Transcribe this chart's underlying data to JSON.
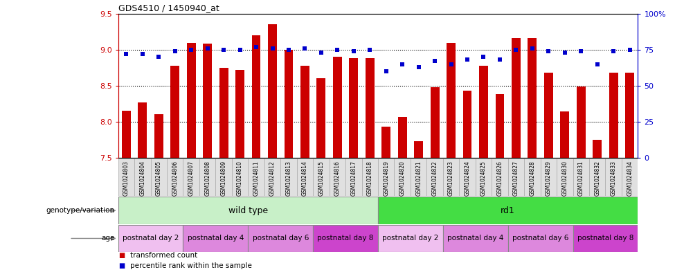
{
  "title": "GDS4510 / 1450940_at",
  "samples": [
    "GSM1024803",
    "GSM1024804",
    "GSM1024805",
    "GSM1024806",
    "GSM1024807",
    "GSM1024808",
    "GSM1024809",
    "GSM1024810",
    "GSM1024811",
    "GSM1024812",
    "GSM1024813",
    "GSM1024814",
    "GSM1024815",
    "GSM1024816",
    "GSM1024817",
    "GSM1024818",
    "GSM1024819",
    "GSM1024820",
    "GSM1024821",
    "GSM1024822",
    "GSM1024823",
    "GSM1024824",
    "GSM1024825",
    "GSM1024826",
    "GSM1024827",
    "GSM1024828",
    "GSM1024829",
    "GSM1024830",
    "GSM1024831",
    "GSM1024832",
    "GSM1024833",
    "GSM1024834"
  ],
  "bar_values": [
    8.15,
    8.27,
    8.1,
    8.78,
    9.09,
    9.08,
    8.75,
    8.72,
    9.2,
    9.35,
    9.0,
    8.78,
    8.6,
    8.9,
    8.88,
    8.88,
    7.93,
    8.07,
    7.73,
    8.48,
    9.09,
    8.43,
    8.78,
    8.38,
    9.16,
    9.16,
    8.68,
    8.14,
    8.49,
    7.75,
    8.68,
    8.68
  ],
  "blue_pct": [
    72,
    72,
    70,
    74,
    75,
    76,
    75,
    75,
    77,
    76,
    75,
    76,
    73,
    75,
    74,
    75,
    60,
    65,
    63,
    67,
    65,
    68,
    70,
    68,
    75,
    76,
    74,
    73,
    74,
    65,
    74,
    75
  ],
  "ylim_left": [
    7.5,
    9.5
  ],
  "ylim_right": [
    0,
    100
  ],
  "yticks_left": [
    7.5,
    8.0,
    8.5,
    9.0,
    9.5
  ],
  "yticks_right": [
    0,
    25,
    50,
    75,
    100
  ],
  "ytick_labels_right": [
    "0",
    "25",
    "50",
    "75",
    "100%"
  ],
  "hlines": [
    8.0,
    8.5,
    9.0
  ],
  "bar_color": "#cc0000",
  "blue_color": "#0000cc",
  "bar_bottom": 7.5,
  "wild_type_color": "#c8f0c8",
  "rd1_color": "#44dd44",
  "age_color_map": {
    "postnatal day 2": "#f0c0f0",
    "postnatal day 4": "#dd88dd",
    "postnatal day 6": "#dd88dd",
    "postnatal day 8": "#cc44cc"
  },
  "age_groups": [
    {
      "label": "postnatal day 2",
      "start": 0,
      "end": 4
    },
    {
      "label": "postnatal day 4",
      "start": 4,
      "end": 8
    },
    {
      "label": "postnatal day 6",
      "start": 8,
      "end": 12
    },
    {
      "label": "postnatal day 8",
      "start": 12,
      "end": 16
    },
    {
      "label": "postnatal day 2",
      "start": 16,
      "end": 20
    },
    {
      "label": "postnatal day 4",
      "start": 20,
      "end": 24
    },
    {
      "label": "postnatal day 6",
      "start": 24,
      "end": 28
    },
    {
      "label": "postnatal day 8",
      "start": 28,
      "end": 32
    }
  ],
  "left_axis_color": "#cc0000",
  "right_axis_color": "#0000cc",
  "legend": [
    {
      "label": "transformed count",
      "color": "#cc0000"
    },
    {
      "label": "percentile rank within the sample",
      "color": "#0000cc"
    }
  ],
  "xticklabel_bg": "#e0e0e0"
}
